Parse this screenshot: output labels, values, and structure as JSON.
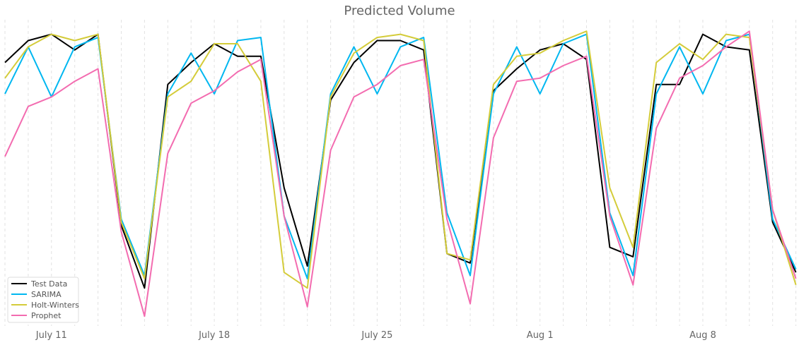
{
  "chart_data": {
    "type": "line",
    "title": "Predicted Volume",
    "xlabel": "",
    "ylabel": "",
    "grid": "vertical-dashed",
    "legend_position": "bottom-left",
    "x_tick_labels": [
      "July 11",
      "July 18",
      "July 25",
      "Aug 1",
      "Aug 8"
    ],
    "x_start": "July 9",
    "x_end": "Aug 12",
    "series": [
      {
        "name": "Test Data",
        "color": "#000000",
        "values": [
          0.85,
          0.92,
          0.94,
          0.89,
          0.94,
          0.33,
          0.13,
          0.78,
          0.85,
          0.91,
          0.87,
          0.87,
          0.45,
          0.2,
          0.73,
          0.85,
          0.92,
          0.92,
          0.89,
          0.24,
          0.21,
          0.76,
          0.83,
          0.89,
          0.91,
          0.86,
          0.26,
          0.23,
          0.78,
          0.78,
          0.94,
          0.9,
          0.89,
          0.34,
          0.18
        ]
      },
      {
        "name": "SARIMA",
        "color": "#00b7f0",
        "values": [
          0.75,
          0.9,
          0.74,
          0.9,
          0.93,
          0.35,
          0.17,
          0.75,
          0.88,
          0.75,
          0.92,
          0.93,
          0.36,
          0.16,
          0.75,
          0.9,
          0.75,
          0.9,
          0.93,
          0.37,
          0.17,
          0.75,
          0.9,
          0.75,
          0.91,
          0.94,
          0.37,
          0.17,
          0.75,
          0.9,
          0.75,
          0.92,
          0.94,
          0.35,
          0.19
        ]
      },
      {
        "name": "Holt-Winters",
        "color": "#d4cc3a",
        "values": [
          0.8,
          0.9,
          0.94,
          0.92,
          0.94,
          0.34,
          0.16,
          0.74,
          0.79,
          0.91,
          0.91,
          0.79,
          0.18,
          0.13,
          0.74,
          0.88,
          0.93,
          0.94,
          0.92,
          0.24,
          0.22,
          0.78,
          0.87,
          0.88,
          0.92,
          0.95,
          0.45,
          0.26,
          0.85,
          0.91,
          0.86,
          0.94,
          0.93,
          0.38,
          0.14
        ]
      },
      {
        "name": "Prophet",
        "color": "#f36cb0",
        "values": [
          0.55,
          0.71,
          0.74,
          0.79,
          0.83,
          0.31,
          0.04,
          0.56,
          0.72,
          0.76,
          0.82,
          0.86,
          0.36,
          0.07,
          0.57,
          0.74,
          0.78,
          0.84,
          0.86,
          0.35,
          0.08,
          0.61,
          0.79,
          0.8,
          0.84,
          0.87,
          0.36,
          0.14,
          0.64,
          0.8,
          0.84,
          0.9,
          0.95,
          0.38,
          0.16
        ]
      }
    ]
  }
}
